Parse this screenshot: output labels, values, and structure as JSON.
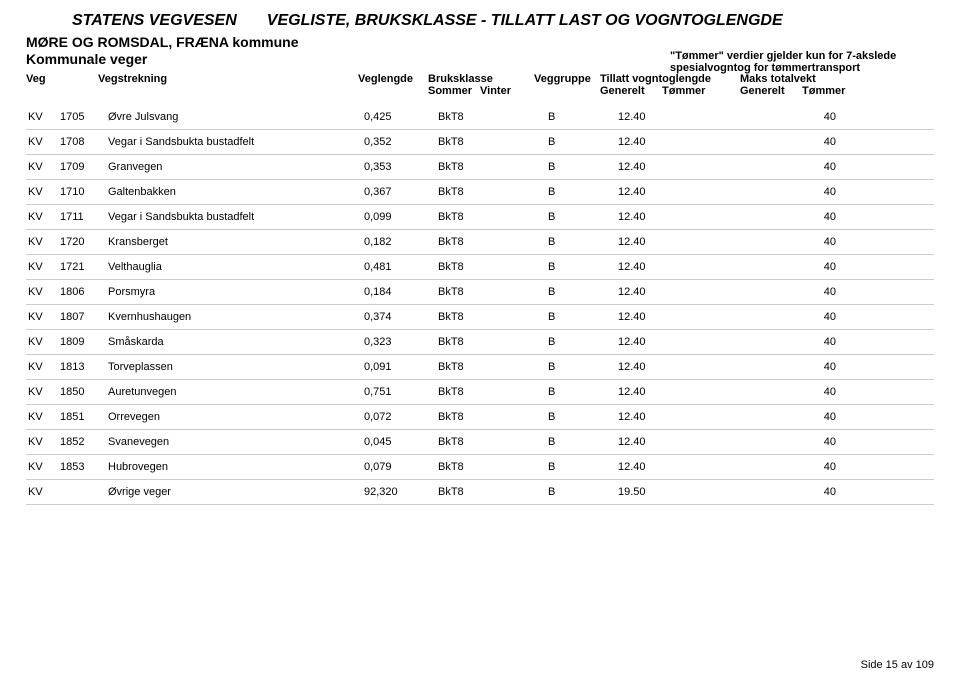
{
  "header": {
    "org": "STATENS VEGVESEN",
    "title": "VEGLISTE, BRUKSKLASSE - TILLATT LAST OG VOGNTOGLENGDE",
    "region": "MØRE OG ROMSDAL, FRÆNA kommune",
    "subtitle": "Kommunale veger",
    "note1": "\"Tømmer\" verdier gjelder kun for 7-akslede",
    "note2": "spesialvogntog for tømmertransport"
  },
  "columns": {
    "veg": "Veg",
    "vegstrekning": "Vegstrekning",
    "veglengde": "Veglengde",
    "bruksklasse": "Bruksklasse",
    "sommer": "Sommer",
    "vinter": "Vinter",
    "veggruppe": "Veggruppe",
    "tillatt": "Tillatt vogntoglengde",
    "generelt": "Generelt",
    "tommer": "Tømmer",
    "maks": "Maks totalvekt",
    "generelt2": "Generelt",
    "tommer2": "Tømmer"
  },
  "rows": [
    {
      "kv": "KV",
      "num": "1705",
      "name": "Øvre Julsvang",
      "len": "0,425",
      "bk": "BkT8",
      "grp": "B",
      "g1": "12.40",
      "t1": "",
      "g2": "40",
      "t2": ""
    },
    {
      "kv": "KV",
      "num": "1708",
      "name": "Vegar i Sandsbukta bustadfelt",
      "len": "0,352",
      "bk": "BkT8",
      "grp": "B",
      "g1": "12.40",
      "t1": "",
      "g2": "40",
      "t2": ""
    },
    {
      "kv": "KV",
      "num": "1709",
      "name": "Granvegen",
      "len": "0,353",
      "bk": "BkT8",
      "grp": "B",
      "g1": "12.40",
      "t1": "",
      "g2": "40",
      "t2": ""
    },
    {
      "kv": "KV",
      "num": "1710",
      "name": "Galtenbakken",
      "len": "0,367",
      "bk": "BkT8",
      "grp": "B",
      "g1": "12.40",
      "t1": "",
      "g2": "40",
      "t2": ""
    },
    {
      "kv": "KV",
      "num": "1711",
      "name": "Vegar i Sandsbukta bustadfelt",
      "len": "0,099",
      "bk": "BkT8",
      "grp": "B",
      "g1": "12.40",
      "t1": "",
      "g2": "40",
      "t2": ""
    },
    {
      "kv": "KV",
      "num": "1720",
      "name": "Kransberget",
      "len": "0,182",
      "bk": "BkT8",
      "grp": "B",
      "g1": "12.40",
      "t1": "",
      "g2": "40",
      "t2": ""
    },
    {
      "kv": "KV",
      "num": "1721",
      "name": "Velthauglia",
      "len": "0,481",
      "bk": "BkT8",
      "grp": "B",
      "g1": "12.40",
      "t1": "",
      "g2": "40",
      "t2": ""
    },
    {
      "kv": "KV",
      "num": "1806",
      "name": "Porsmyra",
      "len": "0,184",
      "bk": "BkT8",
      "grp": "B",
      "g1": "12.40",
      "t1": "",
      "g2": "40",
      "t2": ""
    },
    {
      "kv": "KV",
      "num": "1807",
      "name": "Kvernhushaugen",
      "len": "0,374",
      "bk": "BkT8",
      "grp": "B",
      "g1": "12.40",
      "t1": "",
      "g2": "40",
      "t2": ""
    },
    {
      "kv": "KV",
      "num": "1809",
      "name": "Småskarda",
      "len": "0,323",
      "bk": "BkT8",
      "grp": "B",
      "g1": "12.40",
      "t1": "",
      "g2": "40",
      "t2": ""
    },
    {
      "kv": "KV",
      "num": "1813",
      "name": "Torveplassen",
      "len": "0,091",
      "bk": "BkT8",
      "grp": "B",
      "g1": "12.40",
      "t1": "",
      "g2": "40",
      "t2": ""
    },
    {
      "kv": "KV",
      "num": "1850",
      "name": "Auretunvegen",
      "len": "0,751",
      "bk": "BkT8",
      "grp": "B",
      "g1": "12.40",
      "t1": "",
      "g2": "40",
      "t2": ""
    },
    {
      "kv": "KV",
      "num": "1851",
      "name": "Orrevegen",
      "len": "0,072",
      "bk": "BkT8",
      "grp": "B",
      "g1": "12.40",
      "t1": "",
      "g2": "40",
      "t2": ""
    },
    {
      "kv": "KV",
      "num": "1852",
      "name": "Svanevegen",
      "len": "0,045",
      "bk": "BkT8",
      "grp": "B",
      "g1": "12.40",
      "t1": "",
      "g2": "40",
      "t2": ""
    },
    {
      "kv": "KV",
      "num": "1853",
      "name": "Hubrovegen",
      "len": "0,079",
      "bk": "BkT8",
      "grp": "B",
      "g1": "12.40",
      "t1": "",
      "g2": "40",
      "t2": ""
    },
    {
      "kv": "KV",
      "num": "",
      "name": "Øvrige veger",
      "len": "92,320",
      "bk": "BkT8",
      "grp": "B",
      "g1": "19.50",
      "t1": "",
      "g2": "40",
      "t2": ""
    }
  ],
  "footer": {
    "page": "Side 15 av 109"
  },
  "style": {
    "border_color": "#cccccc",
    "text_color": "#000000",
    "background": "#ffffff"
  }
}
